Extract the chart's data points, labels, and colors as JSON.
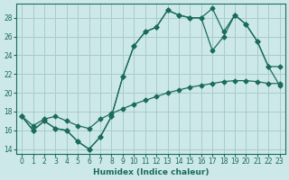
{
  "xlabel": "Humidex (Indice chaleur)",
  "bg_color": "#cde8e8",
  "grid_color": "#a8cccc",
  "line_color": "#1a6b5a",
  "xlim": [
    -0.5,
    23.5
  ],
  "ylim": [
    13.5,
    29.5
  ],
  "xticks": [
    0,
    1,
    2,
    3,
    4,
    5,
    6,
    7,
    8,
    9,
    10,
    11,
    12,
    13,
    14,
    15,
    16,
    17,
    18,
    19,
    20,
    21,
    22,
    23
  ],
  "yticks": [
    14,
    16,
    18,
    20,
    22,
    24,
    26,
    28
  ],
  "line1_x": [
    0,
    1,
    2,
    3,
    4,
    5,
    6,
    7,
    8,
    9,
    10,
    11,
    12,
    13,
    14,
    15,
    16,
    17,
    18,
    19,
    20,
    21,
    22,
    23
  ],
  "line1_y": [
    17.5,
    16.0,
    17.0,
    16.2,
    16.0,
    14.8,
    14.0,
    15.3,
    17.5,
    21.7,
    25.0,
    26.5,
    27.0,
    28.8,
    28.3,
    28.0,
    28.0,
    24.5,
    26.0,
    28.3,
    27.3,
    25.5,
    22.8,
    22.8
  ],
  "line2_x": [
    0,
    1,
    2,
    3,
    4,
    5,
    6,
    7,
    8,
    9,
    10,
    11,
    12,
    13,
    14,
    15,
    16,
    17,
    18,
    19,
    20,
    21,
    22,
    23
  ],
  "line2_y": [
    17.5,
    16.0,
    17.0,
    16.2,
    16.0,
    14.8,
    14.0,
    15.3,
    17.5,
    21.7,
    25.0,
    26.5,
    27.0,
    28.8,
    28.3,
    28.0,
    28.0,
    29.0,
    26.5,
    28.3,
    27.3,
    25.5,
    22.8,
    20.8
  ],
  "line3_x": [
    0,
    1,
    2,
    3,
    4,
    5,
    6,
    7,
    8,
    9,
    10,
    11,
    12,
    13,
    14,
    15,
    16,
    17,
    18,
    19,
    20,
    21,
    22,
    23
  ],
  "line3_y": [
    17.5,
    16.5,
    17.2,
    17.5,
    17.0,
    16.5,
    16.2,
    17.2,
    17.8,
    18.3,
    18.8,
    19.2,
    19.6,
    20.0,
    20.3,
    20.6,
    20.8,
    21.0,
    21.2,
    21.3,
    21.3,
    21.2,
    21.0,
    21.0
  ]
}
